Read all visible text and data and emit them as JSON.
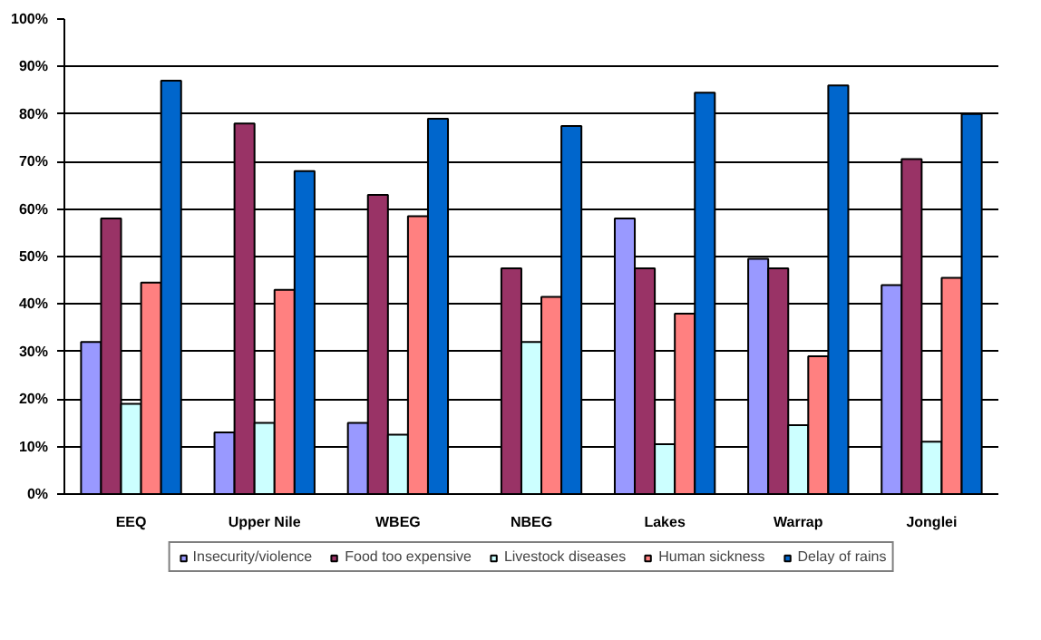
{
  "chart_data": {
    "type": "bar",
    "categories": [
      "EEQ",
      "Upper Nile",
      "WBEG",
      "NBEG",
      "Lakes",
      "Warrap",
      "Jonglei"
    ],
    "series": [
      {
        "name": "Insecurity/violence",
        "color": "#9999ff",
        "values": [
          32,
          13,
          15,
          null,
          58,
          49.5,
          44
        ]
      },
      {
        "name": "Food too expensive",
        "color": "#993366",
        "values": [
          58,
          78,
          63,
          47.5,
          47.5,
          47.5,
          70.5
        ]
      },
      {
        "name": "Livestock diseases",
        "color": "#ccffff",
        "values": [
          19,
          15,
          12.5,
          32,
          10.5,
          14.5,
          11
        ]
      },
      {
        "name": "Human sickness",
        "color": "#ff8080",
        "values": [
          44.5,
          43,
          58.5,
          41.5,
          38,
          29,
          45.5
        ]
      },
      {
        "name": "Delay of rains",
        "color": "#0066cc",
        "values": [
          87,
          68,
          79,
          77.5,
          84.5,
          86,
          80
        ]
      }
    ],
    "ylim": [
      0,
      100
    ],
    "yticks": [
      {
        "value": 0,
        "label": "0%"
      },
      {
        "value": 10,
        "label": "10%"
      },
      {
        "value": 20,
        "label": "20%"
      },
      {
        "value": 30,
        "label": "30%"
      },
      {
        "value": 40,
        "label": "40%"
      },
      {
        "value": 50,
        "label": "50%"
      },
      {
        "value": 60,
        "label": "60%"
      },
      {
        "value": 70,
        "label": "70%"
      },
      {
        "value": 80,
        "label": "80%"
      },
      {
        "value": 90,
        "label": "90%"
      },
      {
        "value": 100,
        "label": "100%"
      }
    ],
    "grid": "y",
    "legend": "bottom"
  }
}
